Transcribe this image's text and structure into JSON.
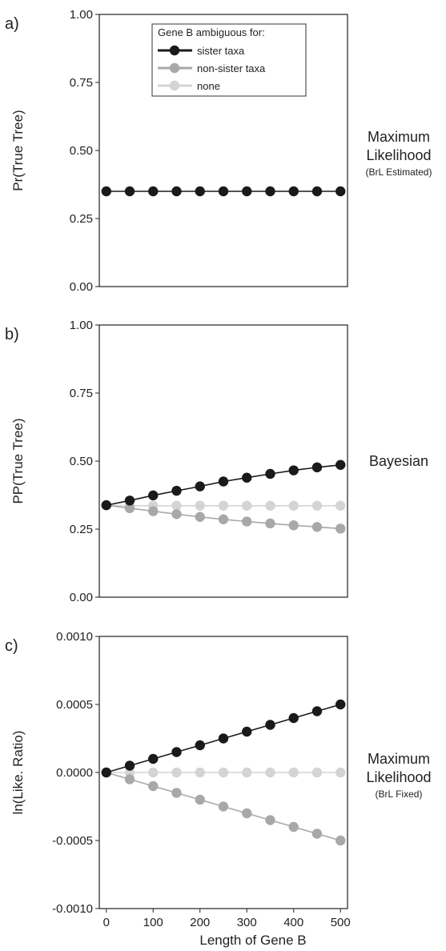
{
  "figure": {
    "xlabel": "Length of Gene B",
    "legend": {
      "title": "Gene B ambiguous for:",
      "placement": "top-center of panel a"
    }
  },
  "chart_data": [
    {
      "type": "line",
      "panel_letter": "a)",
      "side_label": [
        "Maximum",
        "Likelihood"
      ],
      "side_sublabel": "(BrL Estimated)",
      "ylabel": "Pr(True Tree)",
      "xlabel": "",
      "xlim": [
        -15,
        515
      ],
      "ylim": [
        0.0,
        1.0
      ],
      "yticks": [
        0.0,
        0.25,
        0.5,
        0.75,
        1.0
      ],
      "ytick_labels": [
        "0.00",
        "0.25",
        "0.50",
        "0.75",
        "1.00"
      ],
      "xticks": [],
      "xtick_labels": [],
      "grid": false,
      "x": [
        0,
        50,
        100,
        150,
        200,
        250,
        300,
        350,
        400,
        450,
        500
      ],
      "series": [
        {
          "name": "sister taxa",
          "color": "#1a1a1a",
          "values": [
            0.35,
            0.35,
            0.35,
            0.35,
            0.35,
            0.35,
            0.35,
            0.35,
            0.35,
            0.35,
            0.35
          ]
        }
      ]
    },
    {
      "type": "line",
      "panel_letter": "b)",
      "side_label": [
        "Bayesian"
      ],
      "side_sublabel": "",
      "ylabel": "PP(True Tree)",
      "xlabel": "",
      "xlim": [
        -15,
        515
      ],
      "ylim": [
        0.0,
        1.0
      ],
      "yticks": [
        0.0,
        0.25,
        0.5,
        0.75,
        1.0
      ],
      "ytick_labels": [
        "0.00",
        "0.25",
        "0.50",
        "0.75",
        "1.00"
      ],
      "xticks": [],
      "xtick_labels": [],
      "grid": false,
      "x": [
        0,
        50,
        100,
        150,
        200,
        250,
        300,
        350,
        400,
        450,
        500
      ],
      "series": [
        {
          "name": "none",
          "color": "#d4d4d4",
          "values": [
            0.338,
            0.336,
            0.336,
            0.336,
            0.336,
            0.336,
            0.336,
            0.336,
            0.336,
            0.336,
            0.336
          ]
        },
        {
          "name": "non-sister taxa",
          "color": "#a8a8a8",
          "values": [
            0.338,
            0.327,
            0.316,
            0.305,
            0.295,
            0.286,
            0.278,
            0.271,
            0.264,
            0.258,
            0.252
          ]
        },
        {
          "name": "sister taxa",
          "color": "#1a1a1a",
          "values": [
            0.338,
            0.355,
            0.374,
            0.391,
            0.407,
            0.425,
            0.439,
            0.453,
            0.466,
            0.477,
            0.486
          ]
        }
      ]
    },
    {
      "type": "line",
      "panel_letter": "c)",
      "side_label": [
        "Maximum",
        "Likelihood"
      ],
      "side_sublabel": "(BrL Fixed)",
      "ylabel": "ln(Like. Ratio)",
      "xlabel": "Length of Gene B",
      "xlim": [
        -15,
        515
      ],
      "ylim": [
        -0.001,
        0.001
      ],
      "yticks": [
        -0.001,
        -0.0005,
        0.0,
        0.0005,
        0.001
      ],
      "ytick_labels": [
        "-0.0010",
        "-0.0005",
        "0.0000",
        "0.0005",
        "0.0010"
      ],
      "xticks": [
        0,
        100,
        200,
        300,
        400,
        500
      ],
      "xtick_labels": [
        "0",
        "100",
        "200",
        "300",
        "400",
        "500"
      ],
      "grid": false,
      "x": [
        0,
        50,
        100,
        150,
        200,
        250,
        300,
        350,
        400,
        450,
        500
      ],
      "series": [
        {
          "name": "none",
          "color": "#d4d4d4",
          "values": [
            0.0,
            0.0,
            0.0,
            0.0,
            0.0,
            0.0,
            0.0,
            0.0,
            0.0,
            0.0,
            0.0
          ]
        },
        {
          "name": "non-sister taxa",
          "color": "#a8a8a8",
          "values": [
            0.0,
            -5e-05,
            -0.0001,
            -0.00015,
            -0.0002,
            -0.00025,
            -0.0003,
            -0.00035,
            -0.0004,
            -0.00045,
            -0.0005
          ]
        },
        {
          "name": "sister taxa",
          "color": "#1a1a1a",
          "values": [
            0.0,
            5e-05,
            0.0001,
            0.00015,
            0.0002,
            0.00025,
            0.0003,
            0.00035,
            0.0004,
            0.00045,
            0.0005
          ]
        }
      ]
    }
  ],
  "legend_items": [
    {
      "label": "sister taxa",
      "color": "#1a1a1a"
    },
    {
      "label": "non-sister taxa",
      "color": "#a8a8a8"
    },
    {
      "label": "none",
      "color": "#d4d4d4"
    }
  ]
}
